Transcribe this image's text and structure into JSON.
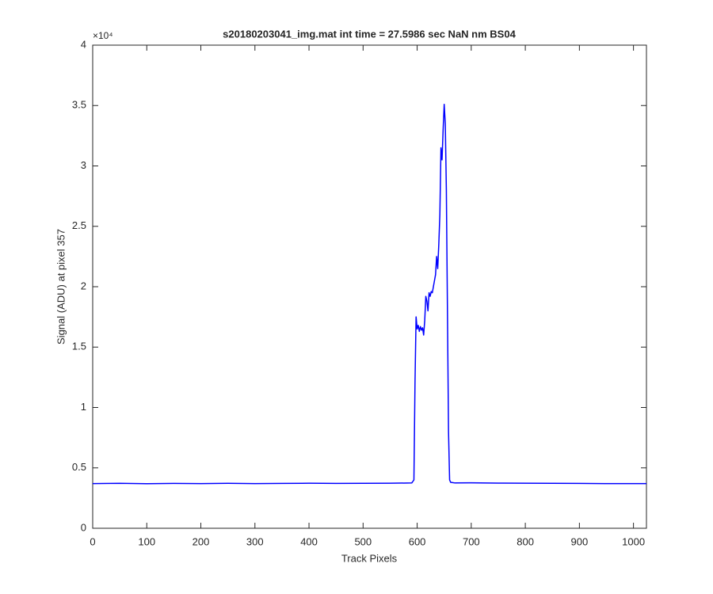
{
  "chart_data": {
    "type": "line",
    "title": "s20180203041_img.mat int time = 27.5986 sec  NaN nm BS04",
    "x_label": "Track Pixels",
    "y_label": "Signal (ADU) at pixel 357",
    "y_multiplier_label": "×10⁴",
    "xlim": [
      0,
      1024
    ],
    "xticks": [
      0,
      100,
      200,
      300,
      400,
      500,
      600,
      700,
      800,
      900,
      1000
    ],
    "ylim": [
      0,
      40000
    ],
    "yticks": [
      {
        "value": 0,
        "label": "0"
      },
      {
        "value": 5000,
        "label": "0.5"
      },
      {
        "value": 10000,
        "label": "1"
      },
      {
        "value": 15000,
        "label": "1.5"
      },
      {
        "value": 20000,
        "label": "2"
      },
      {
        "value": 25000,
        "label": "2.5"
      },
      {
        "value": 30000,
        "label": "3"
      },
      {
        "value": 35000,
        "label": "3.5"
      },
      {
        "value": 40000,
        "label": "4"
      }
    ],
    "grid": false,
    "series": [
      {
        "color": "#0000ff",
        "x": [
          0,
          50,
          100,
          150,
          200,
          250,
          300,
          350,
          400,
          450,
          500,
          550,
          590,
          594,
          596,
          598,
          600,
          602,
          604,
          606,
          608,
          610,
          612,
          614,
          616,
          618,
          620,
          622,
          624,
          626,
          628,
          630,
          634,
          636,
          638,
          640,
          642,
          644,
          646,
          648,
          650,
          652,
          654,
          656,
          658,
          660,
          662,
          670,
          700,
          750,
          800,
          850,
          900,
          950,
          1000,
          1024
        ],
        "values": [
          3700,
          3720,
          3690,
          3710,
          3700,
          3720,
          3700,
          3710,
          3730,
          3710,
          3720,
          3730,
          3750,
          4000,
          12000,
          17500,
          16500,
          16800,
          16300,
          16700,
          16400,
          16600,
          16000,
          17200,
          19200,
          18800,
          18000,
          19500,
          19200,
          19600,
          19500,
          20000,
          21000,
          22500,
          21500,
          23500,
          26000,
          31500,
          30500,
          33000,
          35100,
          33500,
          28000,
          18000,
          8000,
          4000,
          3800,
          3750,
          3760,
          3740,
          3730,
          3720,
          3710,
          3700,
          3700,
          3700
        ]
      }
    ]
  }
}
